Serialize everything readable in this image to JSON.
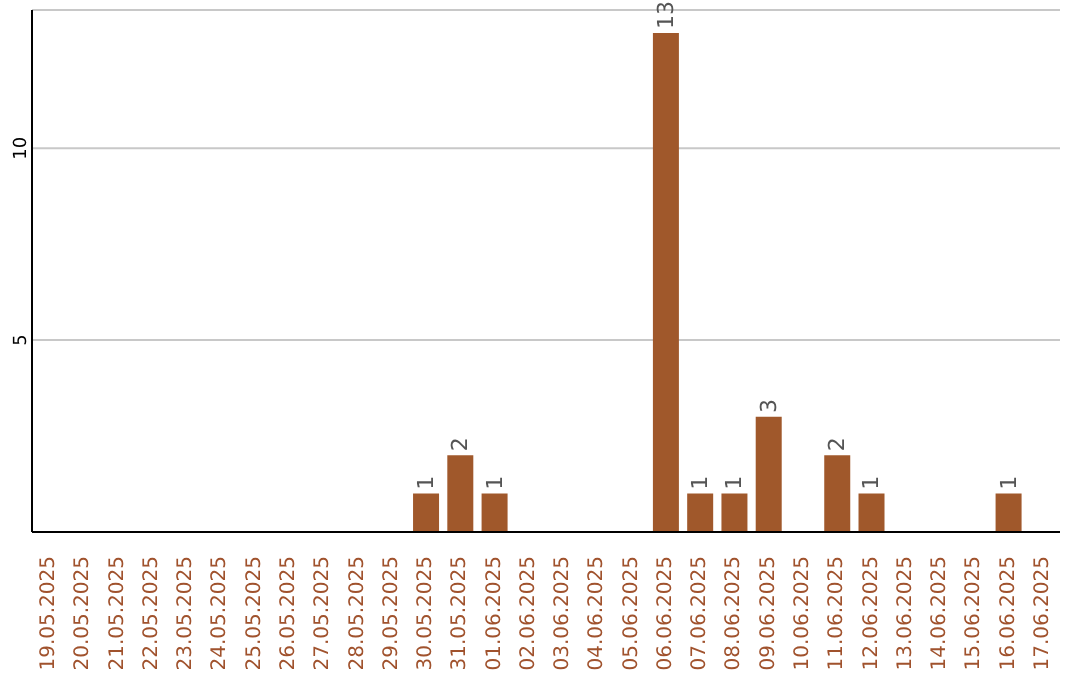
{
  "chart_data": {
    "type": "bar",
    "categories": [
      "19.05.2025",
      "20.05.2025",
      "21.05.2025",
      "22.05.2025",
      "23.05.2025",
      "24.05.2025",
      "25.05.2025",
      "26.05.2025",
      "27.05.2025",
      "28.05.2025",
      "29.05.2025",
      "30.05.2025",
      "31.05.2025",
      "01.06.2025",
      "02.06.2025",
      "03.06.2025",
      "04.06.2025",
      "05.06.2025",
      "06.06.2025",
      "07.06.2025",
      "08.06.2025",
      "09.06.2025",
      "10.06.2025",
      "11.06.2025",
      "12.06.2025",
      "13.06.2025",
      "14.06.2025",
      "15.06.2025",
      "16.06.2025",
      "17.06.2025"
    ],
    "values": [
      0,
      0,
      0,
      0,
      0,
      0,
      0,
      0,
      0,
      0,
      0,
      1,
      2,
      1,
      0,
      0,
      0,
      0,
      13,
      1,
      1,
      3,
      0,
      2,
      1,
      0,
      0,
      0,
      1,
      0
    ],
    "value_labels": [
      null,
      null,
      null,
      null,
      null,
      null,
      null,
      null,
      null,
      null,
      null,
      "1",
      "2",
      "1",
      null,
      null,
      null,
      null,
      "13",
      "1",
      "1",
      "3",
      null,
      "2",
      "1",
      null,
      null,
      null,
      "1",
      null
    ],
    "color": "#a0582b",
    "ylim": [
      0,
      13.6
    ],
    "yticks": [
      5,
      10
    ],
    "grid": "y"
  }
}
